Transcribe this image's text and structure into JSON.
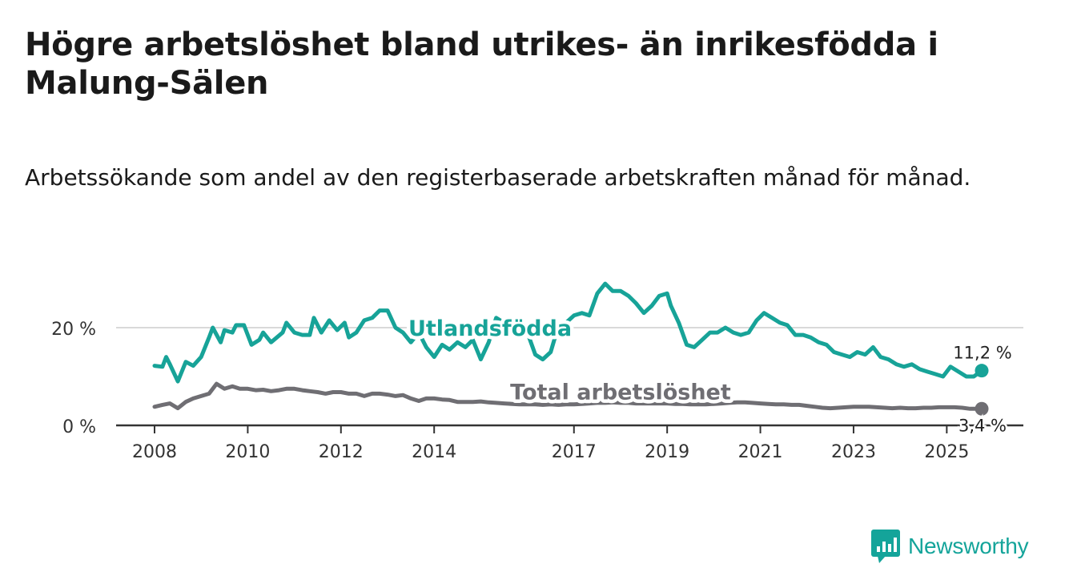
{
  "title": "Högre arbetslöshet bland utrikes- än inrikesfödda i Malung-Sälen",
  "subtitle": "Arbetssökande som andel av den registerbaserade arbetskraften månad för månad.",
  "brand": {
    "name": "Newsworthy",
    "logo_icon": "bar-chart-speech-bubble-icon"
  },
  "colors": {
    "utrikes": "#17a398",
    "total": "#6f6e73",
    "grid": "#d9d9d9",
    "axis": "#333333"
  },
  "chart_data": {
    "type": "line",
    "x_unit": "year",
    "xlim": [
      2007.9,
      2025.9
    ],
    "ylim": [
      0,
      30
    ],
    "x_ticks": [
      2008,
      2010,
      2012,
      2014,
      2017,
      2019,
      2021,
      2023,
      2025
    ],
    "y_ticks": [
      {
        "value": 0,
        "label": "0 %"
      },
      {
        "value": 20,
        "label": "20 %"
      }
    ],
    "series": [
      {
        "name": "Utlandsfödda",
        "color": "#17a398",
        "end_label": "11,2 %",
        "points": [
          [
            2008.0,
            12.2
          ],
          [
            2008.17,
            12.0
          ],
          [
            2008.25,
            14.0
          ],
          [
            2008.33,
            12.5
          ],
          [
            2008.5,
            9.0
          ],
          [
            2008.67,
            13.0
          ],
          [
            2008.83,
            12.2
          ],
          [
            2009.0,
            14.0
          ],
          [
            2009.17,
            18.0
          ],
          [
            2009.25,
            20.0
          ],
          [
            2009.42,
            17.0
          ],
          [
            2009.5,
            19.5
          ],
          [
            2009.67,
            19.0
          ],
          [
            2009.75,
            20.5
          ],
          [
            2009.92,
            20.5
          ],
          [
            2010.08,
            16.5
          ],
          [
            2010.25,
            17.5
          ],
          [
            2010.33,
            19.0
          ],
          [
            2010.5,
            17.0
          ],
          [
            2010.75,
            19.0
          ],
          [
            2010.83,
            21.0
          ],
          [
            2011.0,
            19.0
          ],
          [
            2011.17,
            18.5
          ],
          [
            2011.33,
            18.5
          ],
          [
            2011.42,
            22.0
          ],
          [
            2011.58,
            19.0
          ],
          [
            2011.75,
            21.5
          ],
          [
            2011.92,
            19.5
          ],
          [
            2012.08,
            21.0
          ],
          [
            2012.17,
            18.0
          ],
          [
            2012.33,
            19.0
          ],
          [
            2012.5,
            21.5
          ],
          [
            2012.67,
            22.0
          ],
          [
            2012.83,
            23.5
          ],
          [
            2013.0,
            23.5
          ],
          [
            2013.17,
            20.0
          ],
          [
            2013.33,
            19.0
          ],
          [
            2013.5,
            17.0
          ],
          [
            2013.67,
            19.0
          ],
          [
            2013.83,
            16.0
          ],
          [
            2014.0,
            14.0
          ],
          [
            2014.17,
            16.5
          ],
          [
            2014.33,
            15.5
          ],
          [
            2014.5,
            17.0
          ],
          [
            2014.67,
            16.0
          ],
          [
            2014.83,
            17.5
          ],
          [
            2015.0,
            13.5
          ],
          [
            2015.17,
            17.0
          ],
          [
            2015.33,
            22.0
          ],
          [
            2015.5,
            21.0
          ],
          [
            2015.67,
            20.0
          ],
          [
            2015.83,
            20.0
          ],
          [
            2016.0,
            19.0
          ],
          [
            2016.17,
            14.5
          ],
          [
            2016.33,
            13.5
          ],
          [
            2016.5,
            15.0
          ],
          [
            2016.67,
            20.5
          ],
          [
            2016.83,
            21.0
          ],
          [
            2017.0,
            22.5
          ],
          [
            2017.17,
            23.0
          ],
          [
            2017.33,
            22.5
          ],
          [
            2017.5,
            27.0
          ],
          [
            2017.67,
            29.0
          ],
          [
            2017.83,
            27.5
          ],
          [
            2018.0,
            27.5
          ],
          [
            2018.17,
            26.5
          ],
          [
            2018.33,
            25.0
          ],
          [
            2018.5,
            23.0
          ],
          [
            2018.67,
            24.5
          ],
          [
            2018.83,
            26.5
          ],
          [
            2019.0,
            27.0
          ],
          [
            2019.08,
            24.5
          ],
          [
            2019.25,
            21.0
          ],
          [
            2019.42,
            16.5
          ],
          [
            2019.58,
            16.0
          ],
          [
            2019.75,
            17.5
          ],
          [
            2019.92,
            19.0
          ],
          [
            2020.08,
            19.0
          ],
          [
            2020.25,
            20.0
          ],
          [
            2020.42,
            19.0
          ],
          [
            2020.58,
            18.5
          ],
          [
            2020.75,
            19.0
          ],
          [
            2020.92,
            21.5
          ],
          [
            2021.08,
            23.0
          ],
          [
            2021.25,
            22.0
          ],
          [
            2021.42,
            21.0
          ],
          [
            2021.58,
            20.5
          ],
          [
            2021.75,
            18.5
          ],
          [
            2021.92,
            18.5
          ],
          [
            2022.08,
            18.0
          ],
          [
            2022.25,
            17.0
          ],
          [
            2022.42,
            16.5
          ],
          [
            2022.58,
            15.0
          ],
          [
            2022.75,
            14.5
          ],
          [
            2022.92,
            14.0
          ],
          [
            2023.08,
            15.0
          ],
          [
            2023.25,
            14.5
          ],
          [
            2023.42,
            16.0
          ],
          [
            2023.58,
            14.0
          ],
          [
            2023.75,
            13.5
          ],
          [
            2023.92,
            12.5
          ],
          [
            2024.08,
            12.0
          ],
          [
            2024.25,
            12.5
          ],
          [
            2024.42,
            11.5
          ],
          [
            2024.58,
            11.0
          ],
          [
            2024.75,
            10.5
          ],
          [
            2024.92,
            10.0
          ],
          [
            2025.08,
            12.0
          ],
          [
            2025.25,
            11.0
          ],
          [
            2025.42,
            10.0
          ],
          [
            2025.58,
            10.0
          ],
          [
            2025.75,
            11.2
          ]
        ]
      },
      {
        "name": "Total arbetslöshet",
        "color": "#6f6e73",
        "end_label": "3,4 %",
        "points": [
          [
            2008.0,
            3.8
          ],
          [
            2008.17,
            4.2
          ],
          [
            2008.33,
            4.5
          ],
          [
            2008.5,
            3.5
          ],
          [
            2008.67,
            4.8
          ],
          [
            2008.83,
            5.5
          ],
          [
            2009.0,
            6.0
          ],
          [
            2009.17,
            6.5
          ],
          [
            2009.33,
            8.5
          ],
          [
            2009.5,
            7.5
          ],
          [
            2009.67,
            8.0
          ],
          [
            2009.83,
            7.5
          ],
          [
            2010.0,
            7.5
          ],
          [
            2010.17,
            7.2
          ],
          [
            2010.33,
            7.3
          ],
          [
            2010.5,
            7.0
          ],
          [
            2010.67,
            7.2
          ],
          [
            2010.83,
            7.5
          ],
          [
            2011.0,
            7.5
          ],
          [
            2011.17,
            7.2
          ],
          [
            2011.33,
            7.0
          ],
          [
            2011.5,
            6.8
          ],
          [
            2011.67,
            6.5
          ],
          [
            2011.83,
            6.8
          ],
          [
            2012.0,
            6.8
          ],
          [
            2012.17,
            6.5
          ],
          [
            2012.33,
            6.5
          ],
          [
            2012.5,
            6.0
          ],
          [
            2012.67,
            6.5
          ],
          [
            2012.83,
            6.5
          ],
          [
            2013.0,
            6.3
          ],
          [
            2013.17,
            6.0
          ],
          [
            2013.33,
            6.2
          ],
          [
            2013.5,
            5.5
          ],
          [
            2013.67,
            5.0
          ],
          [
            2013.83,
            5.5
          ],
          [
            2014.0,
            5.5
          ],
          [
            2014.17,
            5.3
          ],
          [
            2014.33,
            5.2
          ],
          [
            2014.5,
            4.8
          ],
          [
            2014.67,
            4.8
          ],
          [
            2014.83,
            4.8
          ],
          [
            2015.0,
            4.9
          ],
          [
            2015.17,
            4.7
          ],
          [
            2015.33,
            4.6
          ],
          [
            2015.5,
            4.5
          ],
          [
            2015.67,
            4.4
          ],
          [
            2015.83,
            4.3
          ],
          [
            2016.0,
            4.3
          ],
          [
            2016.17,
            4.3
          ],
          [
            2016.33,
            4.2
          ],
          [
            2016.5,
            4.3
          ],
          [
            2016.67,
            4.2
          ],
          [
            2016.83,
            4.3
          ],
          [
            2017.0,
            4.3
          ],
          [
            2017.17,
            4.4
          ],
          [
            2017.33,
            4.5
          ],
          [
            2017.5,
            4.6
          ],
          [
            2017.67,
            4.6
          ],
          [
            2017.83,
            4.7
          ],
          [
            2018.0,
            4.6
          ],
          [
            2018.17,
            4.6
          ],
          [
            2018.33,
            4.5
          ],
          [
            2018.5,
            4.5
          ],
          [
            2018.67,
            4.5
          ],
          [
            2018.83,
            4.5
          ],
          [
            2019.0,
            4.5
          ],
          [
            2019.17,
            4.4
          ],
          [
            2019.33,
            4.4
          ],
          [
            2019.5,
            4.3
          ],
          [
            2019.67,
            4.3
          ],
          [
            2019.83,
            4.3
          ],
          [
            2020.0,
            4.4
          ],
          [
            2020.17,
            4.5
          ],
          [
            2020.33,
            4.6
          ],
          [
            2020.5,
            4.7
          ],
          [
            2020.67,
            4.7
          ],
          [
            2020.83,
            4.6
          ],
          [
            2021.0,
            4.5
          ],
          [
            2021.17,
            4.4
          ],
          [
            2021.33,
            4.3
          ],
          [
            2021.5,
            4.3
          ],
          [
            2021.67,
            4.2
          ],
          [
            2021.83,
            4.2
          ],
          [
            2022.0,
            4.0
          ],
          [
            2022.17,
            3.8
          ],
          [
            2022.33,
            3.6
          ],
          [
            2022.5,
            3.5
          ],
          [
            2022.67,
            3.6
          ],
          [
            2022.83,
            3.7
          ],
          [
            2023.0,
            3.8
          ],
          [
            2023.17,
            3.8
          ],
          [
            2023.33,
            3.8
          ],
          [
            2023.5,
            3.7
          ],
          [
            2023.67,
            3.6
          ],
          [
            2023.83,
            3.5
          ],
          [
            2024.0,
            3.6
          ],
          [
            2024.17,
            3.5
          ],
          [
            2024.33,
            3.5
          ],
          [
            2024.5,
            3.6
          ],
          [
            2024.67,
            3.6
          ],
          [
            2024.83,
            3.7
          ],
          [
            2025.0,
            3.7
          ],
          [
            2025.17,
            3.7
          ],
          [
            2025.33,
            3.6
          ],
          [
            2025.5,
            3.4
          ],
          [
            2025.67,
            3.4
          ],
          [
            2025.75,
            3.4
          ]
        ]
      }
    ],
    "annotations": [
      {
        "text": "Utlandsfödda",
        "series": "Utlandsfödda",
        "at": [
          2015.2,
          20.0
        ]
      },
      {
        "text": "Total arbetslöshet",
        "series": "Total arbetslöshet",
        "at": [
          2018.0,
          7.0
        ]
      }
    ]
  }
}
